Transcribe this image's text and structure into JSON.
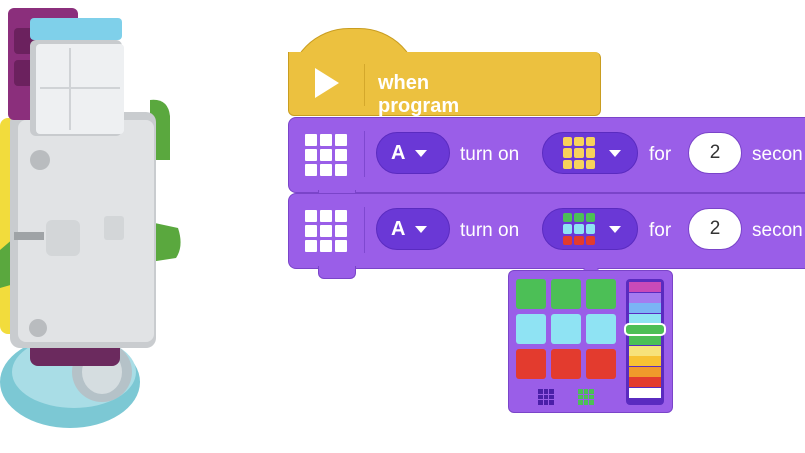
{
  "hat_block": {
    "label": "when program starts",
    "icon": "play-icon"
  },
  "commands": [
    {
      "icon": "grid-icon",
      "port": "A",
      "turn_on_label": "turn on",
      "for_label": "for",
      "duration": "2",
      "unit_label": "secon",
      "image_colors": [
        "#f7d25b",
        "#f7d25b",
        "#f7d25b",
        "#f7d25b",
        "#f7d25b",
        "#f7d25b",
        "#f7d25b",
        "#f7d25b",
        "#f7d25b"
      ]
    },
    {
      "icon": "grid-icon",
      "port": "A",
      "turn_on_label": "turn on",
      "for_label": "for",
      "duration": "2",
      "unit_label": "secon",
      "image_colors": [
        "#4cbf56",
        "#4cbf56",
        "#4cbf56",
        "#8fe3f3",
        "#8fe3f3",
        "#8fe3f3",
        "#e33b2e",
        "#e33b2e",
        "#e33b2e"
      ]
    }
  ],
  "dropdown": {
    "grid_colors": [
      "#4cbf56",
      "#4cbf56",
      "#4cbf56",
      "#8fe3f3",
      "#8fe3f3",
      "#8fe3f3",
      "#e33b2e",
      "#e33b2e",
      "#e33b2e"
    ],
    "palette": [
      "#c94ab8",
      "#a47bf0",
      "#7ab4f5",
      "#8fe3f3",
      "#3fa54a",
      "#4cbf56",
      "#f7e27a",
      "#f7c233",
      "#f09a2b",
      "#e33b2e",
      "#ffffff"
    ],
    "selected_color": "#4cbf56",
    "mode_icons": [
      "pixel-grid-icon",
      "color-grid-icon"
    ]
  },
  "colors": {
    "event_block": "#ecc13f",
    "light_block": "#9a5ee8",
    "pill": "#6a38d6"
  }
}
